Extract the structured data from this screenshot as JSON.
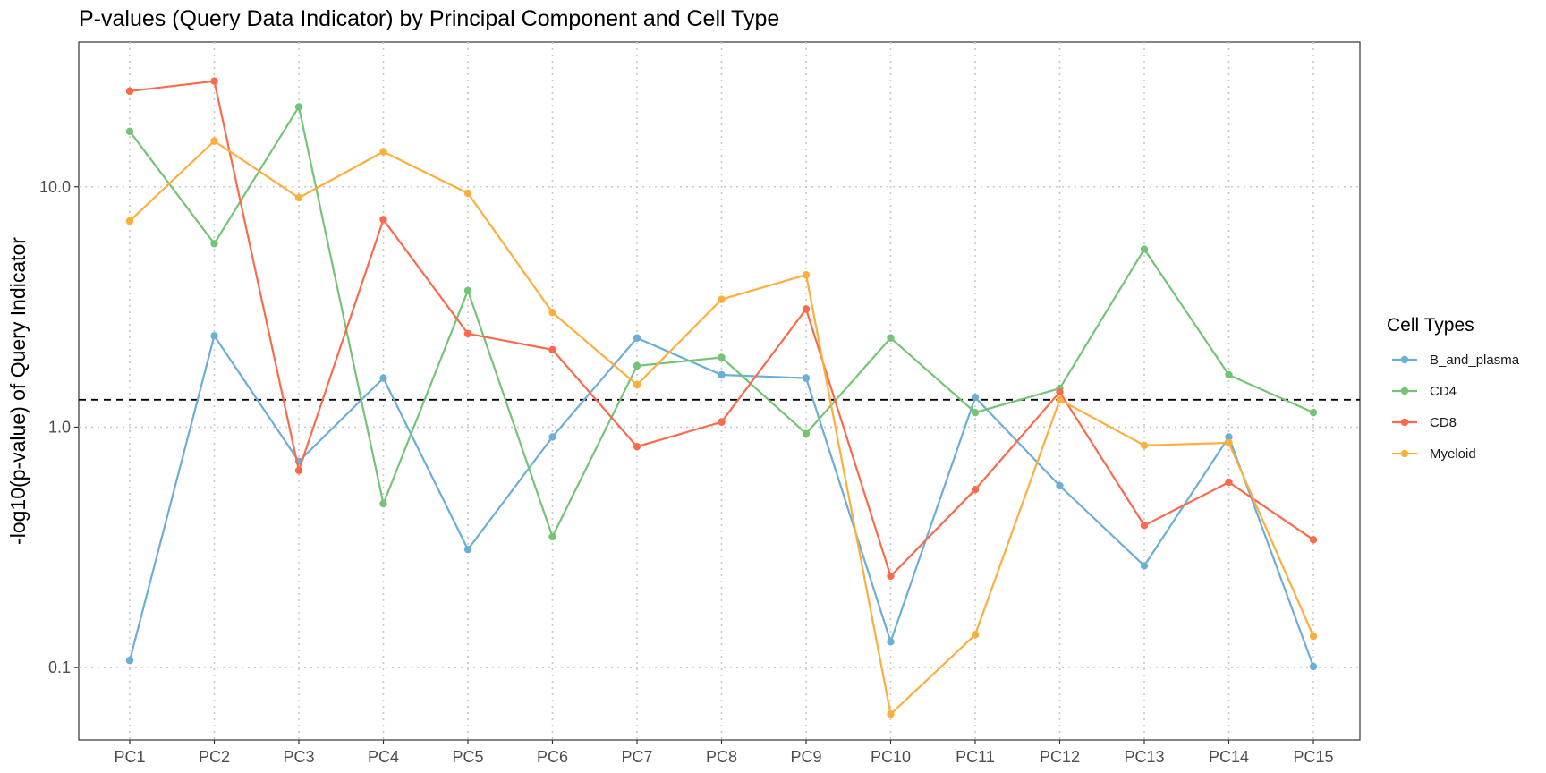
{
  "chart_data": {
    "type": "line",
    "title": "P-values (Query Data Indicator) by Principal Component and Cell Type",
    "xlabel": "",
    "ylabel": "-log10(p-value) of Query Indicator",
    "y_scale": "log10",
    "ylim": [
      0.05,
      40
    ],
    "yticks": [
      0.1,
      1.0,
      10.0
    ],
    "ytick_labels": [
      "0.1",
      "1.0",
      "10.0"
    ],
    "categories": [
      "PC1",
      "PC2",
      "PC3",
      "PC4",
      "PC5",
      "PC6",
      "PC7",
      "PC8",
      "PC9",
      "PC10",
      "PC11",
      "PC12",
      "PC13",
      "PC14",
      "PC15"
    ],
    "reference_line": {
      "y": 1.3,
      "style": "dashed"
    },
    "grid": "major, dotted",
    "legend": {
      "title": "Cell Types",
      "position": "right"
    },
    "series": [
      {
        "name": "B_and_plasma",
        "color": "#6baed6",
        "values": [
          0.107,
          2.4,
          0.72,
          1.6,
          0.31,
          0.91,
          2.35,
          1.65,
          1.6,
          0.128,
          1.33,
          0.57,
          0.265,
          0.91,
          0.101
        ]
      },
      {
        "name": "CD4",
        "color": "#74c476",
        "values": [
          17.0,
          5.8,
          21.5,
          0.48,
          3.7,
          0.35,
          1.8,
          1.95,
          0.94,
          2.35,
          1.15,
          1.45,
          5.5,
          1.65,
          1.15
        ]
      },
      {
        "name": "CD8",
        "color": "#fb6a4a",
        "values": [
          25.0,
          27.5,
          0.66,
          7.3,
          2.45,
          2.1,
          0.83,
          1.05,
          3.1,
          0.24,
          0.55,
          1.4,
          0.39,
          0.59,
          0.34
        ]
      },
      {
        "name": "Myeloid",
        "color": "#fdae3b",
        "values": [
          7.2,
          15.5,
          9.0,
          14.0,
          9.4,
          3.0,
          1.5,
          3.4,
          4.3,
          0.064,
          0.137,
          1.3,
          0.84,
          0.86,
          0.135
        ]
      }
    ]
  }
}
